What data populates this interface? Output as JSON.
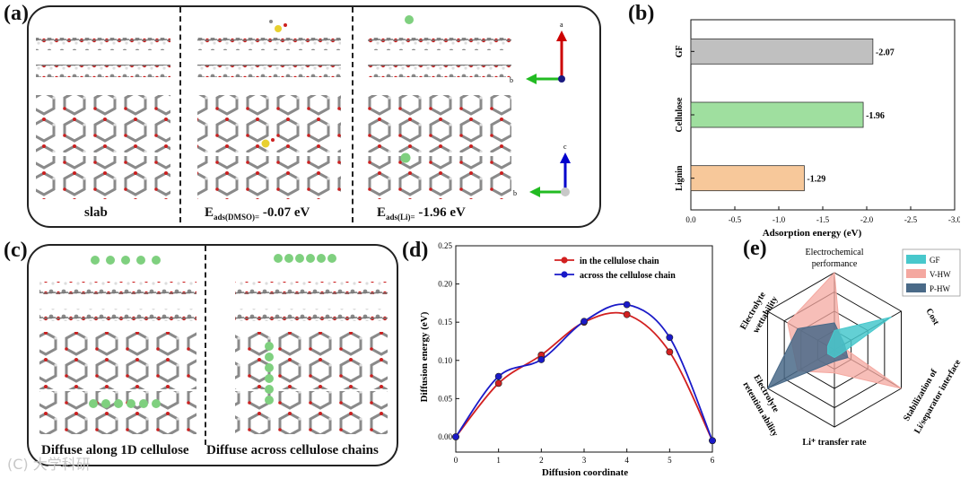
{
  "panel_a": {
    "label": "(a)",
    "captions": [
      {
        "main": "slab",
        "sub": ""
      },
      {
        "main": "E",
        "sub": "ads(DMSO)=",
        "value": " -0.07 eV"
      },
      {
        "main": "E",
        "sub": "ads(Li)=",
        "value": " -1.96 eV"
      }
    ],
    "axes_top": {
      "up": "a",
      "left": "b"
    },
    "axes_bottom": {
      "up": "c",
      "left": "b"
    }
  },
  "panel_b": {
    "label": "(b)",
    "chart_data": {
      "type": "bar",
      "orientation": "horizontal",
      "categories": [
        "GF",
        "Cellulose",
        "Lignin"
      ],
      "values": [
        -2.07,
        -1.96,
        -1.29
      ],
      "value_labels": [
        "-2.07",
        "-1.96",
        "-1.29"
      ],
      "colors": [
        "#c0c0c0",
        "#9fdf9f",
        "#f7c89a"
      ],
      "xlabel": "Adsorption energy (eV)",
      "xlim": [
        0.0,
        -3.0
      ],
      "xticks": [
        "0.0",
        "-0.5",
        "-1.0",
        "-1.5",
        "-2.0",
        "-2.5",
        "-3.0"
      ]
    }
  },
  "panel_c": {
    "label": "(c)",
    "captions": [
      "Diffuse along 1D cellulose",
      "Diffuse across cellulose chains"
    ]
  },
  "panel_d": {
    "label": "(d)",
    "chart_data": {
      "type": "line",
      "x": [
        0,
        1,
        2,
        3,
        4,
        5,
        6
      ],
      "series": [
        {
          "name": "in the cellulose chain",
          "color": "#d22020",
          "values": [
            0.0,
            0.07,
            0.107,
            0.15,
            0.16,
            0.111,
            -0.005
          ]
        },
        {
          "name": "across the cellulose chain",
          "color": "#1a1ac8",
          "values": [
            0.0,
            0.079,
            0.101,
            0.151,
            0.173,
            0.13,
            -0.005
          ]
        }
      ],
      "xlabel": "Diffusion coordinate",
      "ylabel": "Diffusion energy (eV)",
      "xlim": [
        0,
        6
      ],
      "ylim": [
        -0.02,
        0.25
      ],
      "yticks": [
        "0.00",
        "0.05",
        "0.10",
        "0.15",
        "0.20",
        "0.25"
      ],
      "xticks": [
        "0",
        "1",
        "2",
        "3",
        "4",
        "5",
        "6"
      ]
    }
  },
  "panel_e": {
    "label": "(e)",
    "chart_data": {
      "type": "radar",
      "axes": [
        "Electrochemical performance",
        "Cost",
        "Stabilization of Li/separator interface",
        "Li⁺ transfer rate",
        "Electrolyte retention ability",
        "Electrolyte wettability"
      ],
      "axis_labels": {
        "top1": "Electrochemical",
        "top2": "performance",
        "right_top": "Cost",
        "right_bot1": "Stabilization of",
        "right_bot2": "Li/separator interface",
        "bottom": "Li⁺ transfer rate",
        "left_bot1": "Electrolyte",
        "left_bot2": "retention ability",
        "left_top1": "Electrolyte",
        "left_top2": "wettability"
      },
      "series": [
        {
          "name": "GF",
          "color": "#48c8cc",
          "values": [
            0.25,
            0.85,
            0.1,
            0.1,
            0.1,
            0.1
          ]
        },
        {
          "name": "V-HW",
          "color": "#f4a8a0",
          "values": [
            1.0,
            0.1,
            1.0,
            0.3,
            0.55,
            0.7
          ]
        },
        {
          "name": "P-HW",
          "color": "#4a6a88",
          "values": [
            0.35,
            0.15,
            0.2,
            0.15,
            1.0,
            0.55
          ]
        }
      ],
      "max": 1.0
    }
  },
  "watermark": "(C) 大学科研"
}
